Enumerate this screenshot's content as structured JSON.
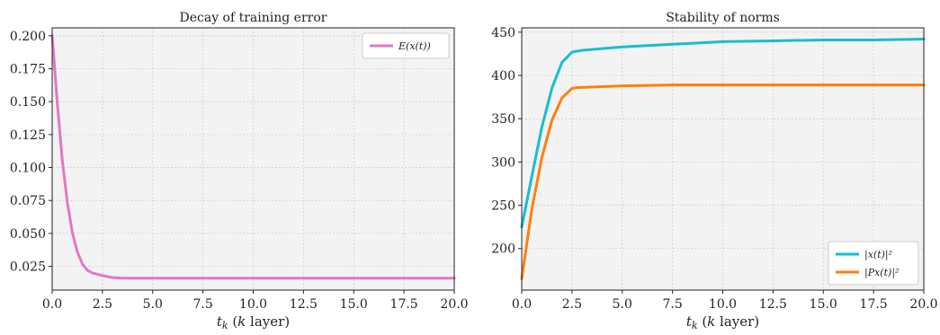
{
  "chart_data": [
    {
      "type": "line",
      "title": "Decay of training error",
      "xlabel": "t_k (k layer)",
      "xlabel_parts": [
        "t",
        "k",
        " (",
        "k",
        " layer)"
      ],
      "ylabel": "",
      "xlim": [
        0,
        20
      ],
      "ylim": [
        0.007,
        0.206
      ],
      "xticks": [
        0,
        2.5,
        5,
        7.5,
        10,
        12.5,
        15,
        17.5,
        20
      ],
      "xtick_labels": [
        "0.0",
        "2.5",
        "5.0",
        "7.5",
        "10.0",
        "12.5",
        "15.0",
        "17.5",
        "20.0"
      ],
      "yticks": [
        0.025,
        0.05,
        0.075,
        0.1,
        0.125,
        0.15,
        0.175,
        0.2
      ],
      "ytick_labels": [
        "0.025",
        "0.050",
        "0.075",
        "0.100",
        "0.125",
        "0.150",
        "0.175",
        "0.200"
      ],
      "grid": true,
      "legend_position": "top-right",
      "series": [
        {
          "name": "E(x(t))",
          "color": "#e377c2",
          "x": [
            0,
            0.25,
            0.5,
            0.75,
            1.0,
            1.25,
            1.5,
            1.75,
            2.0,
            2.5,
            3.0,
            3.5,
            4.0,
            5.0,
            7.5,
            10,
            12.5,
            15,
            17.5,
            20
          ],
          "y": [
            0.2,
            0.15,
            0.106,
            0.074,
            0.051,
            0.036,
            0.027,
            0.022,
            0.02,
            0.018,
            0.0165,
            0.016,
            0.016,
            0.016,
            0.016,
            0.016,
            0.016,
            0.016,
            0.016,
            0.016
          ]
        }
      ]
    },
    {
      "type": "line",
      "title": "Stability of norms",
      "xlabel": "t_k (k layer)",
      "xlabel_parts": [
        "t",
        "k",
        " (",
        "k",
        " layer)"
      ],
      "ylabel": "",
      "xlim": [
        0,
        20
      ],
      "ylim": [
        152,
        455
      ],
      "xticks": [
        0,
        2.5,
        5,
        7.5,
        10,
        12.5,
        15,
        17.5,
        20
      ],
      "xtick_labels": [
        "0.0",
        "2.5",
        "5.0",
        "7.5",
        "10.0",
        "12.5",
        "15.0",
        "17.5",
        "20.0"
      ],
      "yticks": [
        200,
        250,
        300,
        350,
        400,
        450
      ],
      "ytick_labels": [
        "200",
        "250",
        "300",
        "350",
        "400",
        "450"
      ],
      "grid": true,
      "legend_position": "bottom-right",
      "series": [
        {
          "name": "|x(t)|²",
          "color": "#17becf",
          "x": [
            0,
            0.5,
            1.0,
            1.5,
            2.0,
            2.5,
            3.0,
            4.0,
            5.0,
            7.5,
            10,
            12.5,
            15,
            17.5,
            20
          ],
          "y": [
            225,
            283,
            340,
            385,
            415,
            427,
            429,
            431,
            433,
            436,
            439,
            440,
            441,
            441,
            442
          ]
        },
        {
          "name": "|Px(t)|²",
          "color": "#ff7f0e",
          "x": [
            0,
            0.5,
            1.0,
            1.5,
            2.0,
            2.5,
            2.8,
            4.0,
            5.0,
            7.5,
            10,
            12.5,
            15,
            17.5,
            20
          ],
          "y": [
            165,
            245,
            305,
            348,
            374,
            385,
            386,
            387,
            388,
            389,
            389,
            389,
            389,
            389,
            389
          ]
        }
      ]
    }
  ]
}
